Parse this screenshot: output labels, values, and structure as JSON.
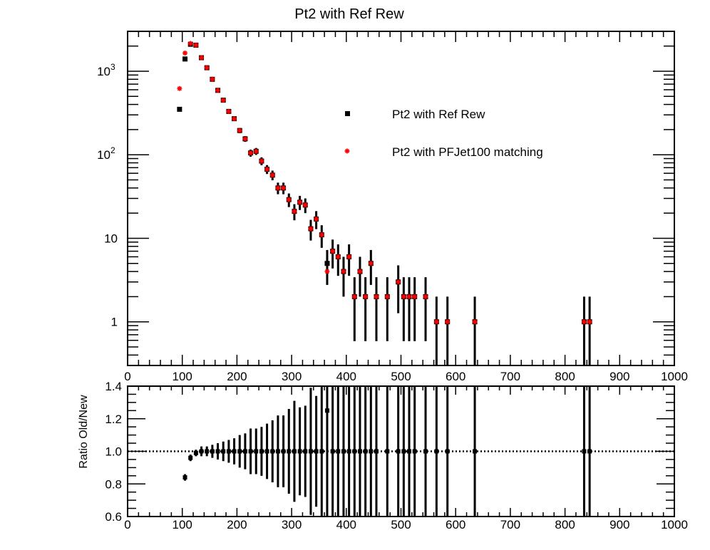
{
  "colors": {
    "series_ref": "#000000",
    "series_pfjet": "#ff0000",
    "axis": "#000000",
    "background": "#ffffff"
  },
  "chart_data": [
    {
      "type": "scatter",
      "title": "Pt2 with Ref Rew",
      "xlabel": "",
      "ylabel": "",
      "xlim": [
        0,
        1000
      ],
      "ylim": [
        0.3,
        3000
      ],
      "yscale": "log",
      "grid": false,
      "legend_position": "top-right",
      "x_ticks": [
        "0",
        "100",
        "200",
        "300",
        "400",
        "500",
        "600",
        "700",
        "800",
        "900",
        "1000"
      ],
      "y_ticks": [
        {
          "value": 1,
          "label": "1"
        },
        {
          "value": 10,
          "label": "10"
        },
        {
          "value": 100,
          "label": "10",
          "exp": "2"
        },
        {
          "value": 1000,
          "label": "10",
          "exp": "3"
        }
      ],
      "series": [
        {
          "name": "Pt2 with Ref Rew",
          "marker": "square",
          "color": "#000000",
          "x": [
            95,
            105,
            115,
            125,
            135,
            145,
            155,
            165,
            175,
            185,
            195,
            205,
            215,
            225,
            235,
            245,
            255,
            265,
            275,
            285,
            295,
            305,
            315,
            325,
            335,
            345,
            355,
            365,
            375,
            385,
            395,
            405,
            415,
            425,
            435,
            445,
            455,
            475,
            495,
            505,
            515,
            525,
            545,
            565,
            585,
            635,
            835,
            845
          ],
          "y": [
            350,
            1400,
            2100,
            2050,
            1450,
            1100,
            800,
            590,
            450,
            330,
            270,
            195,
            155,
            105,
            110,
            84,
            67,
            57,
            40,
            40,
            29,
            21,
            27,
            25,
            13,
            17,
            11,
            5,
            7,
            6,
            4,
            6,
            2,
            4,
            2,
            5,
            2,
            2,
            3,
            2,
            2,
            2,
            2,
            1,
            1,
            1,
            1,
            1
          ]
        },
        {
          "name": "Pt2 with PFJet100 matching",
          "marker": "star",
          "color": "#ff0000",
          "x": [
            95,
            105,
            115,
            125,
            135,
            145,
            155,
            165,
            175,
            185,
            195,
            205,
            215,
            225,
            235,
            245,
            255,
            265,
            275,
            285,
            295,
            305,
            315,
            325,
            335,
            345,
            355,
            365,
            375,
            385,
            395,
            405,
            415,
            425,
            435,
            445,
            455,
            475,
            495,
            505,
            515,
            525,
            545,
            565,
            585,
            635,
            835,
            845
          ],
          "y": [
            620,
            1650,
            2150,
            2050,
            1450,
            1100,
            800,
            590,
            450,
            330,
            270,
            195,
            155,
            105,
            110,
            84,
            67,
            57,
            40,
            40,
            29,
            21,
            27,
            25,
            13,
            17,
            11,
            4,
            7,
            6,
            4,
            6,
            2,
            4,
            2,
            5,
            2,
            2,
            3,
            2,
            2,
            2,
            2,
            1,
            1,
            1,
            1,
            1
          ]
        }
      ]
    },
    {
      "type": "scatter",
      "title": "",
      "xlabel": "",
      "ylabel": "Ratio Old/New",
      "xlim": [
        0,
        1000
      ],
      "ylim": [
        0.6,
        1.4
      ],
      "grid": false,
      "reference_line": 1.0,
      "x_ticks": [
        "0",
        "100",
        "200",
        "300",
        "400",
        "500",
        "600",
        "700",
        "800",
        "900",
        "1000"
      ],
      "y_ticks": [
        "0.6",
        "0.8",
        "1.0",
        "1.2",
        "1.4"
      ],
      "series": [
        {
          "name": "",
          "marker": "square",
          "color": "#000000",
          "x": [
            105,
            115,
            125,
            135,
            145,
            155,
            165,
            175,
            185,
            195,
            205,
            215,
            225,
            235,
            245,
            255,
            265,
            275,
            285,
            295,
            305,
            315,
            325,
            335,
            345,
            355,
            365,
            375,
            385,
            395,
            405,
            415,
            425,
            435,
            445,
            455,
            475,
            495,
            505,
            515,
            525,
            545,
            565,
            585,
            635,
            835,
            845
          ],
          "y": [
            0.84,
            0.96,
            0.99,
            1.0,
            1.0,
            1.0,
            1.0,
            1.0,
            1.0,
            1.0,
            1.0,
            1.0,
            1.0,
            1.0,
            1.0,
            1.0,
            1.0,
            1.0,
            1.0,
            1.0,
            1.0,
            1.0,
            1.0,
            1.0,
            1.0,
            1.0,
            1.25,
            1.0,
            1.0,
            1.0,
            1.0,
            1.0,
            1.0,
            1.0,
            1.0,
            1.0,
            1.0,
            1.0,
            1.0,
            1.0,
            1.0,
            1.0,
            1.0,
            1.0,
            1.0,
            1.0,
            1.0
          ],
          "yerr": [
            0.02,
            0.02,
            0.02,
            0.03,
            0.03,
            0.04,
            0.05,
            0.06,
            0.07,
            0.08,
            0.1,
            0.11,
            0.14,
            0.14,
            0.15,
            0.17,
            0.19,
            0.22,
            0.22,
            0.26,
            0.31,
            0.27,
            0.28,
            0.39,
            0.34,
            0.43,
            0.7,
            0.53,
            0.58,
            0.71,
            0.58,
            1.0,
            0.71,
            1.0,
            0.63,
            1.0,
            1.0,
            0.82,
            1.0,
            1.0,
            1.0,
            1.0,
            1.4,
            1.4,
            1.4,
            1.4,
            1.4
          ]
        }
      ]
    }
  ]
}
